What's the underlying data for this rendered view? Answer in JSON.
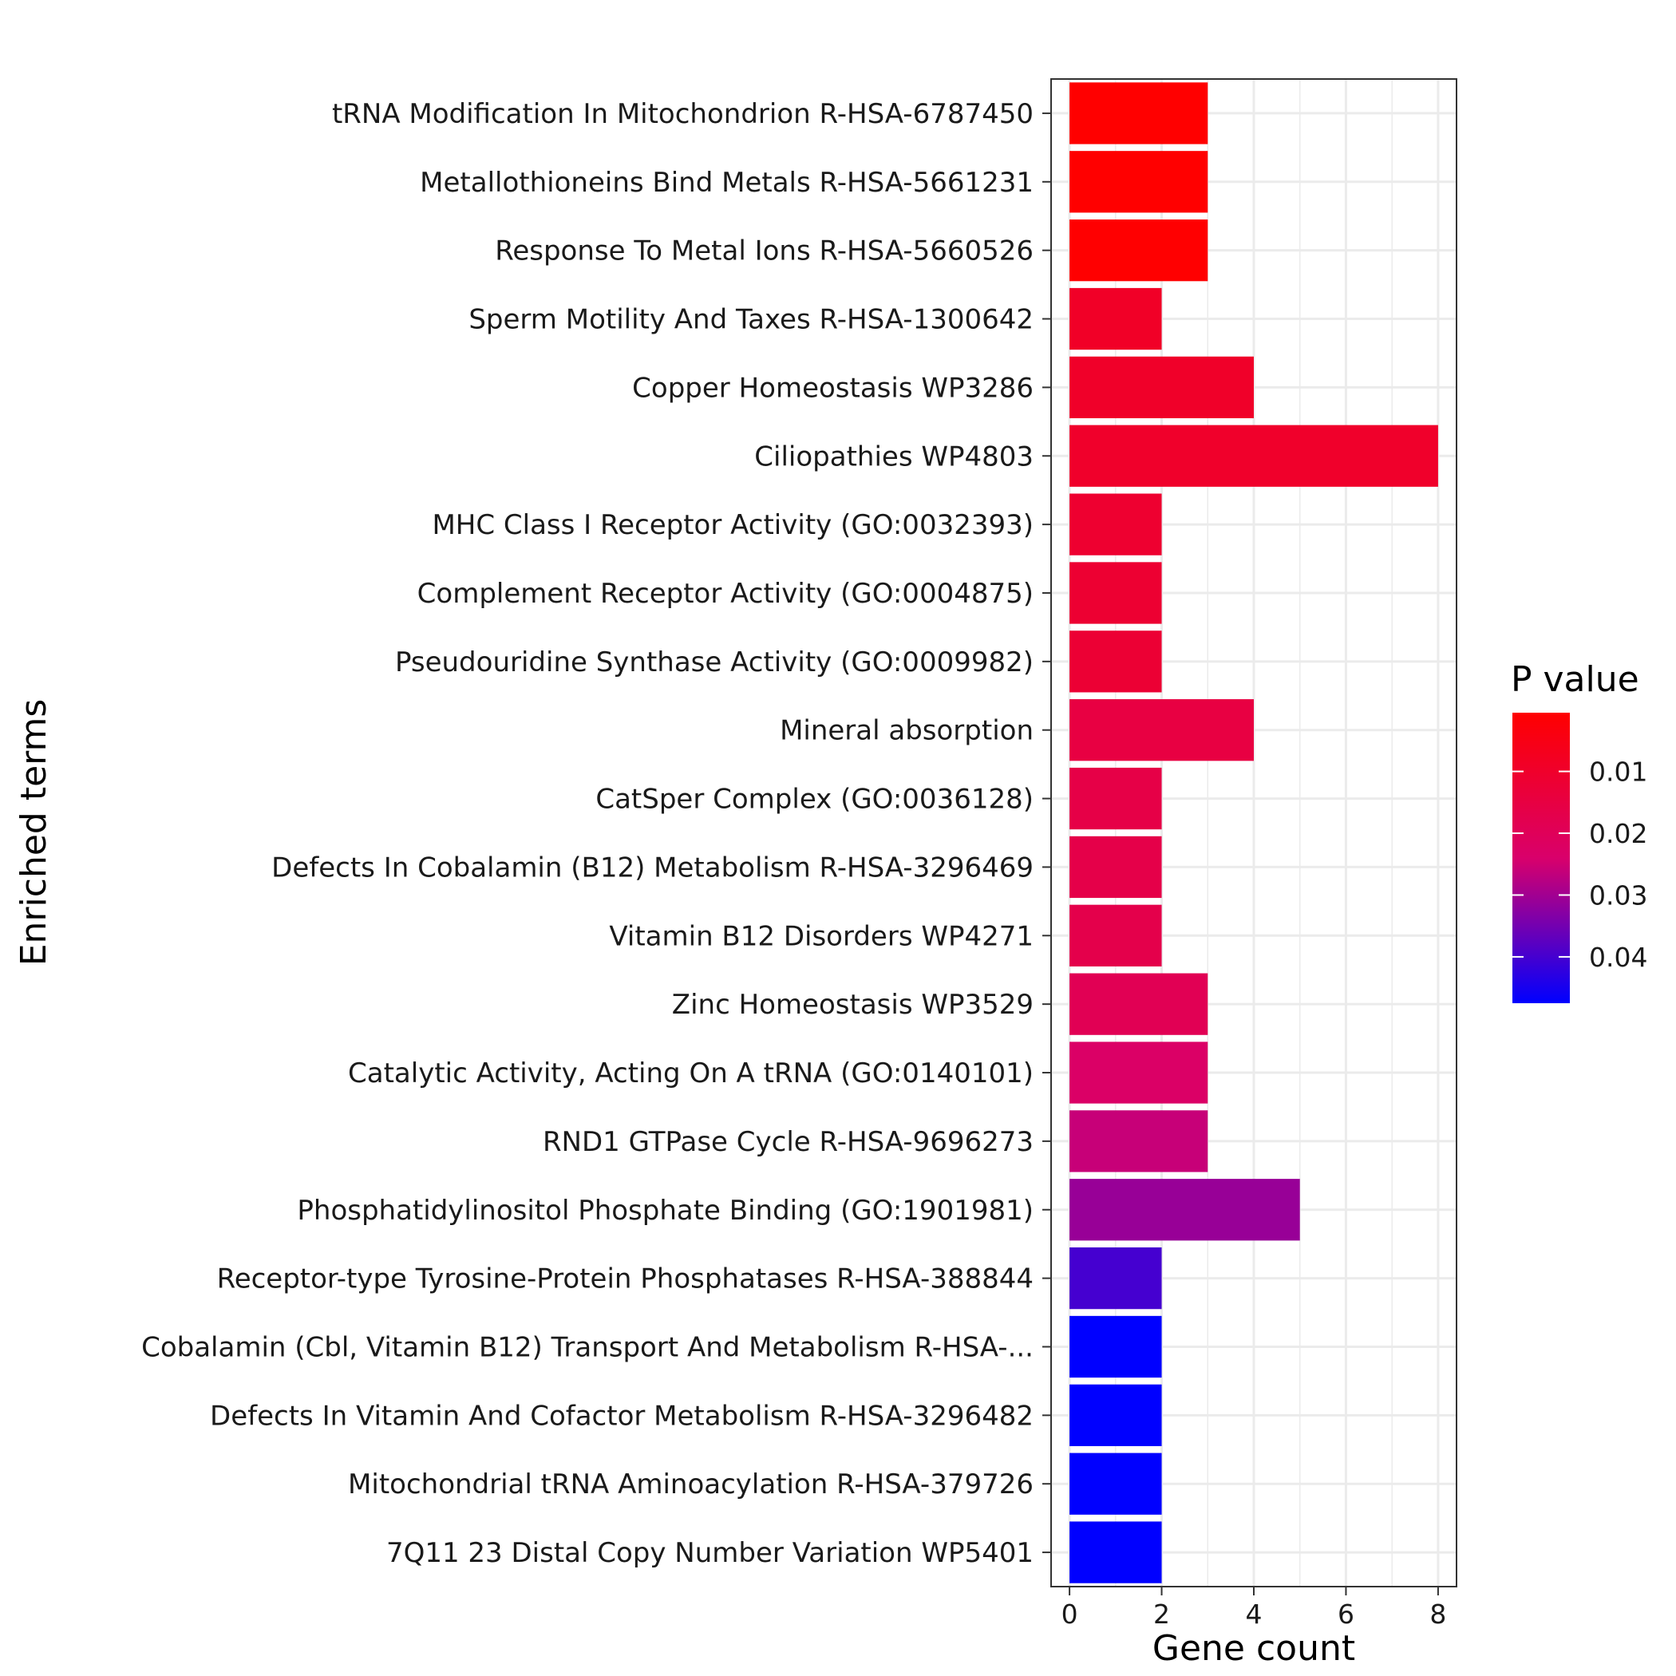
{
  "chart_data": {
    "type": "bar",
    "orientation": "horizontal",
    "xlabel": "Gene count",
    "ylabel": "Enriched terms",
    "xlim": [
      -0.4,
      8.4
    ],
    "x_ticks": [
      0,
      2,
      4,
      6,
      8
    ],
    "grid": true,
    "categories": [
      "tRNA Modification In Mitochondrion R-HSA-6787450",
      "Metallothioneins Bind Metals R-HSA-5661231",
      "Response To Metal Ions R-HSA-5660526",
      "Sperm Motility And Taxes R-HSA-1300642",
      "Copper Homeostasis WP3286",
      "Ciliopathies WP4803",
      "MHC Class I Receptor Activity (GO:0032393)",
      "Complement Receptor Activity (GO:0004875)",
      "Pseudouridine Synthase Activity (GO:0009982)",
      "Mineral absorption",
      "CatSper Complex (GO:0036128)",
      "Defects In Cobalamin (B12) Metabolism R-HSA-3296469",
      "Vitamin B12 Disorders WP4271",
      "Zinc Homeostasis WP3529",
      "Catalytic Activity, Acting On A tRNA (GO:0140101)",
      "RND1 GTPase Cycle R-HSA-9696273",
      "Phosphatidylinositol Phosphate Binding (GO:1901981)",
      "Receptor-type Tyrosine-Protein Phosphatases R-HSA-388844",
      "Cobalamin (Cbl, Vitamin B12) Transport And Metabolism R-HSA-...",
      "Defects In Vitamin And Cofactor Metabolism R-HSA-3296482",
      "Mitochondrial tRNA Aminoacylation R-HSA-379726",
      "7Q11 23 Distal Copy Number Variation WP5401"
    ],
    "values": [
      3,
      3,
      3,
      2,
      4,
      8,
      2,
      2,
      2,
      4,
      2,
      2,
      2,
      3,
      3,
      3,
      5,
      2,
      2,
      2,
      2,
      2
    ],
    "p_values": [
      0.0005,
      0.0006,
      0.0007,
      0.009,
      0.0095,
      0.01,
      0.011,
      0.0115,
      0.012,
      0.015,
      0.016,
      0.0165,
      0.017,
      0.019,
      0.023,
      0.026,
      0.031,
      0.04,
      0.0475,
      0.0475,
      0.0475,
      0.0475
    ],
    "legend": {
      "title": "P value",
      "position": "right",
      "ticks": [
        0.01,
        0.02,
        0.03,
        0.04
      ],
      "tick_labels": [
        "0.01",
        "0.02",
        "0.03",
        "0.04"
      ],
      "range": [
        0.0005,
        0.0475
      ],
      "low_color": "#ff0000",
      "high_color": "#0000ff"
    }
  }
}
